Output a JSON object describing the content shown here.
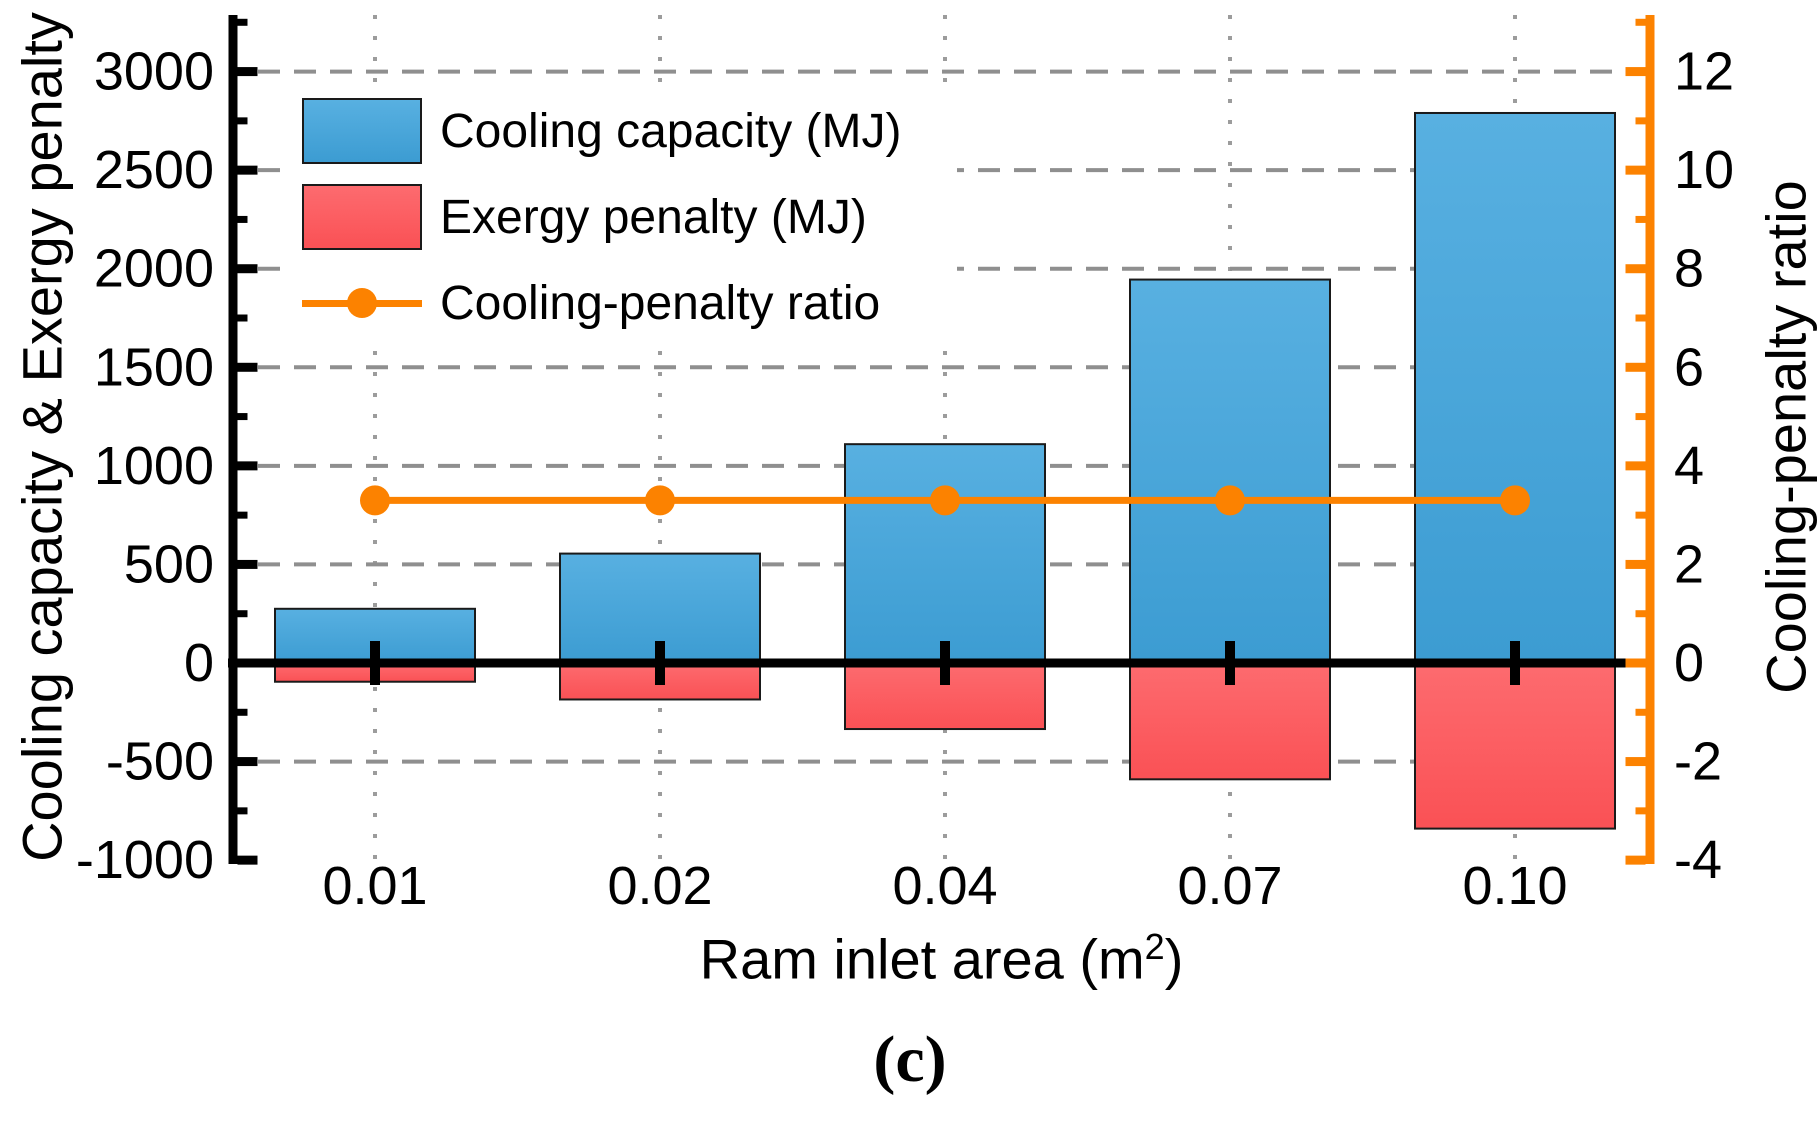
{
  "figure": {
    "caption": "(c)"
  },
  "axes": {
    "left": {
      "title": "Cooling capacity & Exergy penalty",
      "ticks": [
        3000,
        2500,
        2000,
        1500,
        1000,
        500,
        0,
        -500,
        -1000
      ],
      "minor_ticks": [
        3250,
        2750,
        2250,
        1750,
        1250,
        750,
        250,
        -250,
        -750
      ],
      "range": [
        -1000,
        3290
      ]
    },
    "right": {
      "title": "Cooling-penalty ratio",
      "ticks": [
        12,
        10,
        8,
        6,
        4,
        2,
        0,
        -2,
        -4
      ],
      "minor_ticks": [
        13,
        11,
        9,
        7,
        5,
        3,
        1,
        -1,
        -3
      ],
      "range": [
        -4,
        13.16
      ]
    },
    "x": {
      "title_pre": "Ram inlet area (m",
      "title_sup": "2",
      "title_post": ")",
      "labels": [
        "0.01",
        "0.02",
        "0.04",
        "0.07",
        "0.10"
      ]
    }
  },
  "legend": {
    "items": [
      {
        "label": "Cooling capacity (MJ)",
        "swatch": "blue-bar"
      },
      {
        "label": "Exergy penalty (MJ)",
        "swatch": "red-bar"
      },
      {
        "label": "Cooling-penalty ratio",
        "swatch": "orange-line-dot"
      }
    ]
  },
  "colors": {
    "blue_bar": "#47A7DB",
    "red_bar": "#FC5E62",
    "orange": "#FC8200",
    "bar_border": "#1a1a1a",
    "grid_dash": "#8F8F8F",
    "grid_dot": "#9C9C9C",
    "zero_line": "#000000"
  },
  "chart_data": {
    "type": "bar",
    "subtype": "dual-axis bar + line",
    "categories": [
      "0.01",
      "0.02",
      "0.04",
      "0.07",
      "0.10"
    ],
    "series": [
      {
        "name": "Cooling capacity (MJ)",
        "type": "bar",
        "axis": "left",
        "color": "#47A7DB",
        "values": [
          275,
          555,
          1110,
          1945,
          2790
        ]
      },
      {
        "name": "Exergy penalty (MJ)",
        "type": "bar",
        "axis": "left",
        "color": "#FC5E62",
        "values": [
          -95,
          -185,
          -335,
          -590,
          -840
        ]
      },
      {
        "name": "Cooling-penalty ratio",
        "type": "line",
        "axis": "right",
        "color": "#FC8200",
        "values": [
          3.3,
          3.3,
          3.3,
          3.3,
          3.3
        ]
      }
    ],
    "title": "",
    "xlabel": "Ram inlet area (m²)",
    "ylabel_left": "Cooling capacity & Exergy penalty",
    "ylabel_right": "Cooling-penalty ratio",
    "ylim_left": [
      -1000,
      3000
    ],
    "ylim_right": [
      -4,
      12
    ],
    "grid": "dashed horizontal at left-axis majors, dotted vertical at categories",
    "legend_position": "upper left inside plot"
  }
}
